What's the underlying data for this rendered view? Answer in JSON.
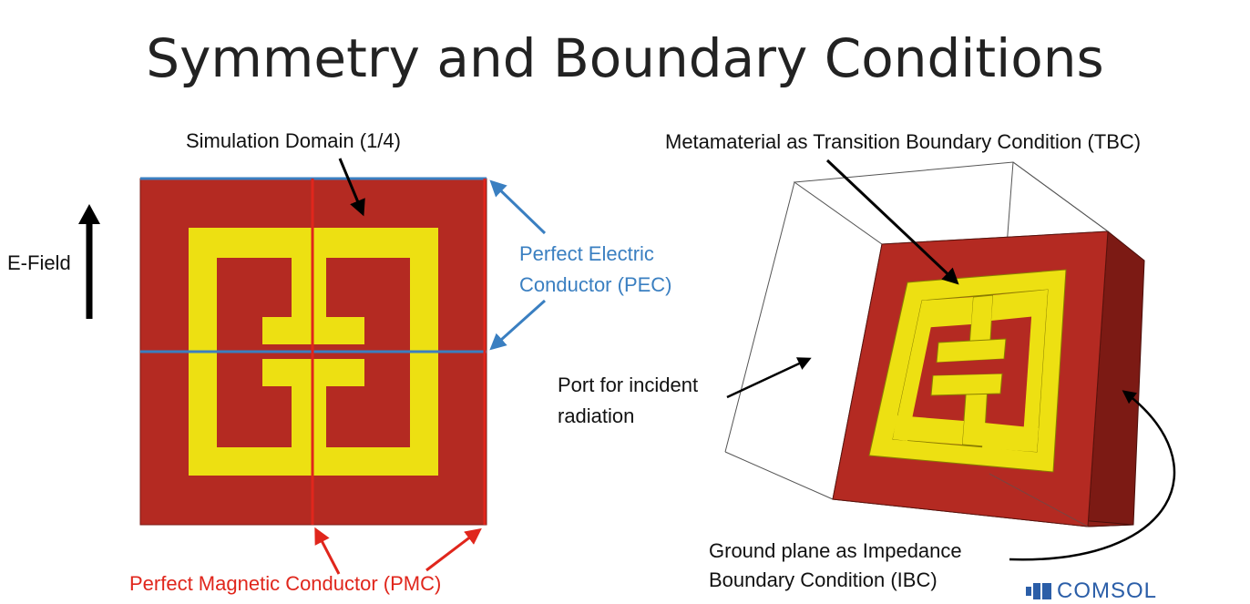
{
  "title": "Symmetry and Boundary Conditions",
  "left_panel": {
    "simulation_domain_label": "Simulation Domain (1/4)",
    "efield_label": "E-Field",
    "pec_label_line1": "Perfect Electric",
    "pec_label_line2": "Conductor (PEC)",
    "pmc_label": "Perfect Magnetic Conductor (PMC)"
  },
  "right_panel": {
    "tbc_label": "Metamaterial  as Transition Boundary Condition (TBC)",
    "port_label_line1": "Port for incident",
    "port_label_line2": "radiation",
    "ibc_label_line1": "Ground plane as Impedance",
    "ibc_label_line2": "Boundary Condition (IBC)"
  },
  "logo": {
    "text": "COMSOL"
  },
  "colors": {
    "substrate": "#b42a22",
    "substrate_side": "#7c1a14",
    "metamaterial": "#ede012",
    "pec_line": "#3a7fc1",
    "pmc_line": "#e0261c",
    "arrow": "#000000"
  }
}
